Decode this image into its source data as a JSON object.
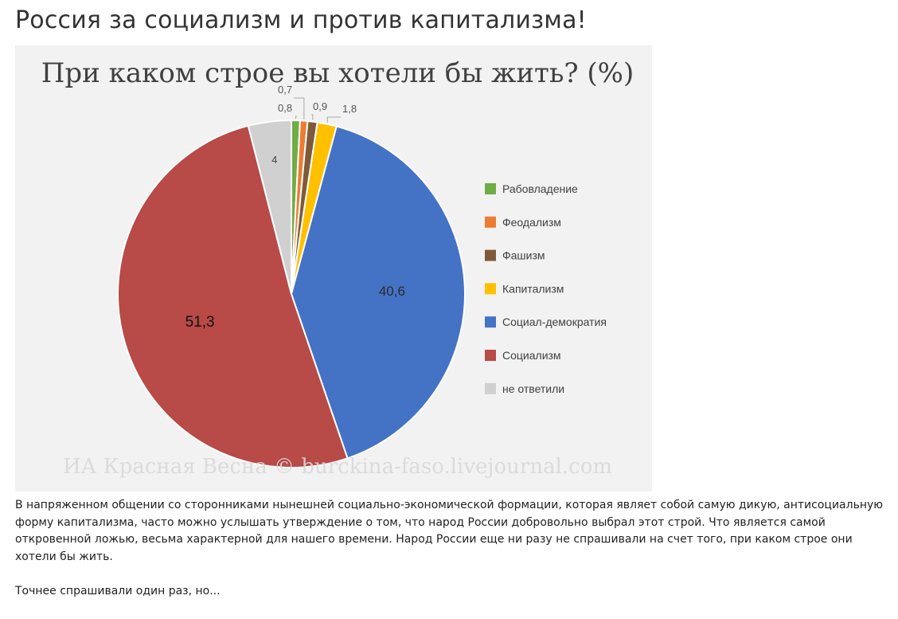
{
  "page": {
    "title": "Россия за социализм и против капитализма!"
  },
  "chart_data": {
    "type": "pie",
    "title": "При каком строе вы хотели бы жить? (%)",
    "watermark": "ИА Красная Весна © burckina-faso.livejournal.com",
    "legend_position": "right",
    "slices": [
      {
        "label": "Рабовладение",
        "value": 0.8,
        "value_label": "0,8",
        "color": "#70ad47"
      },
      {
        "label": "Феодализм",
        "value": 0.7,
        "value_label": "0,7",
        "color": "#ed7d31"
      },
      {
        "label": "Фашизм",
        "value": 0.9,
        "value_label": "0,9",
        "color": "#7f5a3a"
      },
      {
        "label": "Капитализм",
        "value": 1.8,
        "value_label": "1,8",
        "color": "#ffc000"
      },
      {
        "label": "Социал-демократия",
        "value": 40.6,
        "value_label": "40,6",
        "color": "#4472c4"
      },
      {
        "label": "Социализм",
        "value": 51.3,
        "value_label": "51,3",
        "color": "#b84a47"
      },
      {
        "label": "не ответили",
        "value": 4,
        "value_label": "4",
        "color": "#d0d0d0"
      }
    ]
  },
  "article": {
    "paragraph1": "В напряженном общении со сторонниками нынешней социально-экономической формации, которая являет собой самую дикую, антисоциальную форму капитализма, часто можно услышать утверждение о том, что народ России добровольно выбрал этот строй. Что является самой откровенной ложью, весьма характерной для нашего времени. Народ России еще ни разу не спрашивали на счет того, при каком строе они хотели бы жить.",
    "paragraph2": "Точнее спрашивали один раз, но..."
  }
}
